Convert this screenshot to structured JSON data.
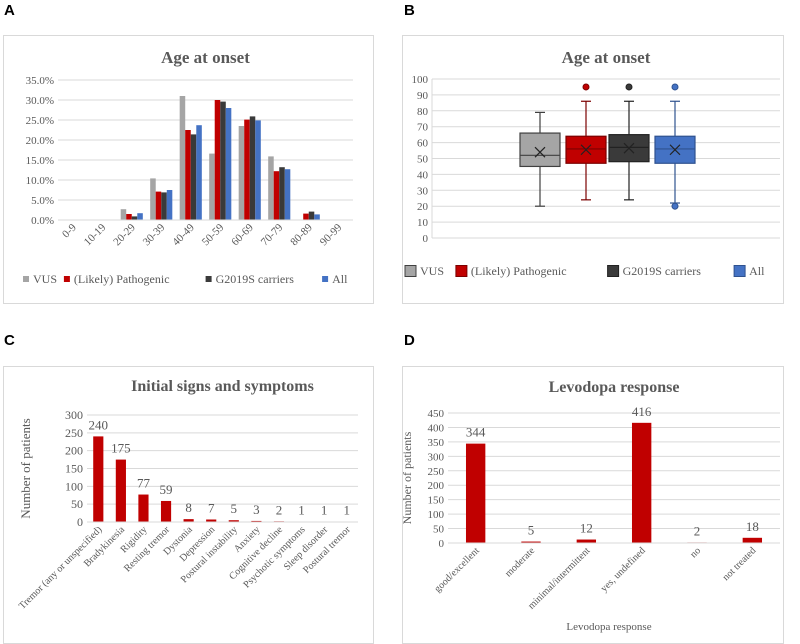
{
  "panels": {
    "a": "A",
    "b": "B",
    "c": "C",
    "d": "D"
  },
  "chart_data": [
    {
      "type": "bar",
      "title": "Age at onset",
      "categories": [
        "0-9",
        "10-19",
        "20-29",
        "30-39",
        "40-49",
        "50-59",
        "60-69",
        "70-79",
        "80-89",
        "90-99"
      ],
      "ylim": [
        0,
        35
      ],
      "yticks": [
        "0.0%",
        "5.0%",
        "10.0%",
        "15.0%",
        "20.0%",
        "25.0%",
        "30.0%",
        "35.0%"
      ],
      "grid": true,
      "legend": "bottom",
      "series": [
        {
          "name": "VUS",
          "color": "#a5a5a5",
          "values": [
            0,
            0,
            2.7,
            10.4,
            31.0,
            16.6,
            23.5,
            15.9,
            0,
            0
          ]
        },
        {
          "name": "(Likely) Pathogenic",
          "color": "#c00000",
          "values": [
            0,
            0,
            1.5,
            7.1,
            22.5,
            30.0,
            25.1,
            12.2,
            1.6,
            0
          ]
        },
        {
          "name": "G2019S carriers",
          "color": "#3a3a3a",
          "values": [
            0,
            0,
            0.9,
            6.9,
            21.4,
            29.6,
            25.9,
            13.2,
            2.1,
            0
          ]
        },
        {
          "name": "All",
          "color": "#4472c4",
          "values": [
            0,
            0,
            1.7,
            7.5,
            23.7,
            28.0,
            24.9,
            12.7,
            1.4,
            0
          ]
        }
      ]
    },
    {
      "type": "box",
      "title": "Age at onset",
      "ylim": [
        0,
        100
      ],
      "yticks": [
        "0",
        "10",
        "20",
        "30",
        "40",
        "50",
        "60",
        "70",
        "80",
        "90",
        "100"
      ],
      "grid": true,
      "legend": "bottom",
      "series": [
        {
          "name": "VUS",
          "color": "#a5a5a5",
          "stroke": "#404040",
          "min": 20,
          "q1": 45,
          "median": 52,
          "q3": 66,
          "max": 79,
          "mean": 54,
          "outliers": []
        },
        {
          "name": "(Likely) Pathogenic",
          "color": "#c00000",
          "stroke": "#7b0000",
          "min": 24,
          "q1": 47,
          "median": 56,
          "q3": 64,
          "max": 86,
          "mean": 55.5,
          "outliers": [
            95
          ]
        },
        {
          "name": "G2019S carriers",
          "color": "#3a3a3a",
          "stroke": "#222222",
          "min": 24,
          "q1": 48,
          "median": 57,
          "q3": 65,
          "max": 86,
          "mean": 56.5,
          "outliers": [
            95
          ]
        },
        {
          "name": "All",
          "color": "#4472c4",
          "stroke": "#2f528f",
          "min": 22,
          "q1": 47,
          "median": 56,
          "q3": 64,
          "max": 86,
          "mean": 55.5,
          "outliers": [
            95,
            20
          ]
        }
      ]
    },
    {
      "type": "bar",
      "title": "Initial signs and symptoms",
      "ylabel": "Number of patients",
      "categories": [
        "Tremor (any or unspecified)",
        "Bradykinesia",
        "Rigidity",
        "Resting tremor",
        "Dystonia",
        "Depression",
        "Postural instability",
        "Anxiety",
        "Cognitive decline",
        "Psychotic symptoms",
        "Sleep disorder",
        "Postural tremor"
      ],
      "ylim": [
        0,
        300
      ],
      "yticks": [
        "0",
        "50",
        "100",
        "150",
        "200",
        "250",
        "300"
      ],
      "grid": true,
      "series": [
        {
          "color": "#c00000",
          "values": [
            240,
            175,
            77,
            59,
            8,
            7,
            5,
            3,
            2,
            1,
            1,
            1
          ],
          "labels": [
            "240",
            "175",
            "77",
            "59",
            "8",
            "7",
            "5",
            "3",
            "2",
            "1",
            "1",
            "1"
          ]
        }
      ]
    },
    {
      "type": "bar",
      "title": "Levodopa response",
      "ylabel": "Number of patients",
      "xlabel": "Levodopa response",
      "categories": [
        "good/excellent",
        "moderate",
        "minimal/intermittent",
        "yes, undefined",
        "no",
        "not treated"
      ],
      "ylim": [
        0,
        450
      ],
      "yticks": [
        "0",
        "50",
        "100",
        "150",
        "200",
        "250",
        "300",
        "350",
        "400",
        "450"
      ],
      "grid": true,
      "series": [
        {
          "color": "#c00000",
          "values": [
            344,
            5,
            12,
            416,
            2,
            18
          ],
          "labels": [
            "344",
            "5",
            "12",
            "416",
            "2",
            "18"
          ]
        }
      ]
    }
  ]
}
